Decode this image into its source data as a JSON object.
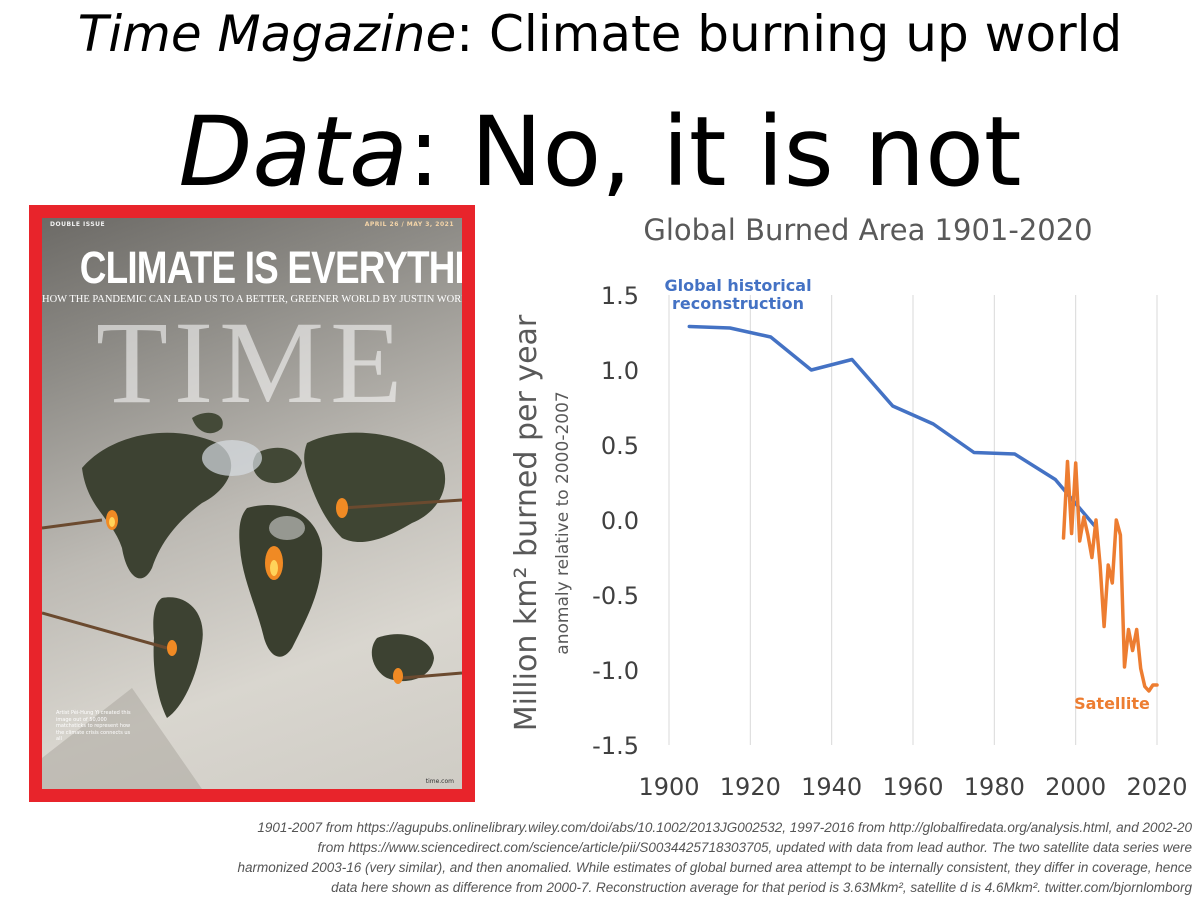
{
  "headline": {
    "line1_italic": "Time Magazine",
    "line1_rest": ": Climate burning up world",
    "line2_italic": "Data",
    "line2_rest": ": No, it is not"
  },
  "cover": {
    "top_left": "DOUBLE ISSUE",
    "top_right": "APRIL 26 / MAY 3, 2021",
    "title": "CLIMATE IS EVERYTHING.",
    "subtitle": "HOW THE PANDEMIC CAN LEAD US TO A BETTER, GREENER WORLD",
    "byline": "BY JUSTIN WORLAND",
    "logo": "TIME",
    "caption": "Artist Pèi-Hung Yi created this image out of 50,000 matchsticks to represent how the climate crisis connects us all",
    "url": "time.com"
  },
  "chart_data": {
    "type": "line",
    "title": "Global Burned Area 1901-2020",
    "ylabel": "Million km² burned per year",
    "ylabel_sub": "anomaly relative to 2000-2007",
    "xlabel": "",
    "xlim": [
      1900,
      2020
    ],
    "ylim": [
      -1.5,
      1.5
    ],
    "x_ticks": [
      "1900",
      "1920",
      "1940",
      "1960",
      "1980",
      "2000",
      "2020"
    ],
    "y_ticks": [
      "1.5",
      "1.0",
      "0.5",
      "0.0",
      "-0.5",
      "-1.0",
      "-1.5"
    ],
    "grid": "vertical",
    "colors": {
      "reconstruction": "#4472c4",
      "satellite": "#ed7d31"
    },
    "series": [
      {
        "name": "Global historical reconstruction",
        "x": [
          1905,
          1915,
          1925,
          1935,
          1945,
          1955,
          1965,
          1975,
          1985,
          1995,
          2005
        ],
        "y": [
          1.29,
          1.28,
          1.22,
          1.0,
          1.07,
          0.76,
          0.64,
          0.45,
          0.44,
          0.27,
          -0.05
        ]
      },
      {
        "name": "Satellite",
        "x": [
          1997,
          1998,
          1999,
          2000,
          2001,
          2002,
          2003,
          2004,
          2005,
          2006,
          2007,
          2008,
          2009,
          2010,
          2011,
          2012,
          2013,
          2014,
          2015,
          2016,
          2017,
          2018,
          2019,
          2020
        ],
        "y": [
          -0.12,
          0.39,
          -0.09,
          0.38,
          -0.14,
          0.02,
          -0.1,
          -0.25,
          0.0,
          -0.3,
          -0.71,
          -0.3,
          -0.42,
          0.0,
          -0.1,
          -0.98,
          -0.73,
          -0.87,
          -0.73,
          -0.99,
          -1.11,
          -1.14,
          -1.1,
          -1.1
        ]
      }
    ]
  },
  "footnote": {
    "line1": "1901-2007 from https://agupubs.onlinelibrary.wiley.com/doi/abs/10.1002/2013JG002532, 1997-2016 from http://globalfiredata.org/analysis.html, and 2002-20",
    "line2": "from https://www.sciencedirect.com/science/article/pii/S0034425718303705, updated with data from lead author. The two satellite data series were",
    "line3": "harmonized 2003-16 (very similar), and then anomalied. While estimates of global burned area attempt to be internally consistent, they differ in coverage, hence",
    "line4": "data here shown as difference from 2000-7. Reconstruction average for that period is 3.63Mkm², satellite d is 4.6Mkm². twitter.com/bjornlomborg"
  }
}
